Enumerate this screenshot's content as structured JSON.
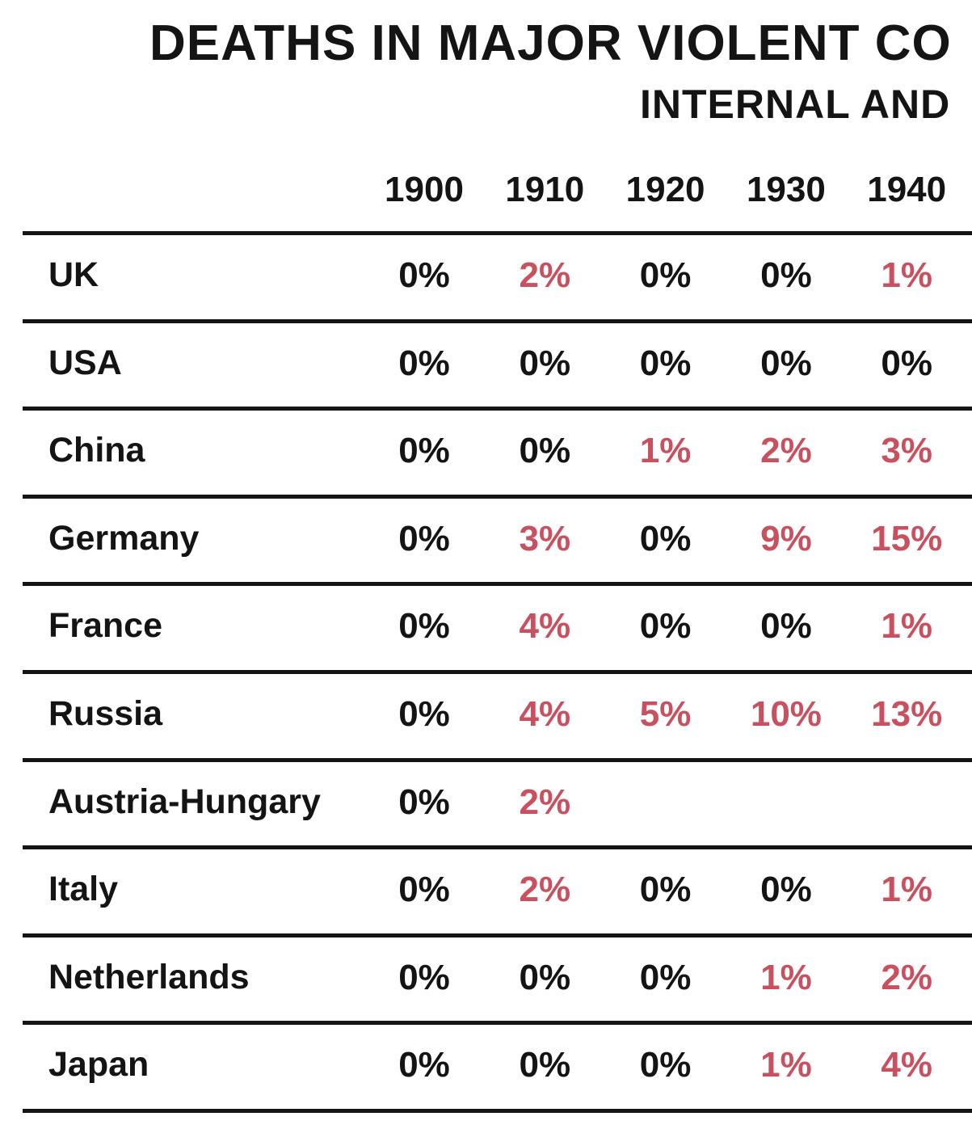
{
  "header": {
    "title": "DEATHS IN MAJOR VIOLENT CO",
    "subtitle": "INTERNAL AND"
  },
  "table": {
    "columns": [
      "1900",
      "1910",
      "1920",
      "1930",
      "1940"
    ],
    "highlight_color": "#c9505e",
    "rows": [
      {
        "label": "UK",
        "cells": [
          "0%",
          "2%",
          "0%",
          "0%",
          "1%"
        ]
      },
      {
        "label": "USA",
        "cells": [
          "0%",
          "0%",
          "0%",
          "0%",
          "0%"
        ]
      },
      {
        "label": "China",
        "cells": [
          "0%",
          "0%",
          "1%",
          "2%",
          "3%"
        ]
      },
      {
        "label": "Germany",
        "cells": [
          "0%",
          "3%",
          "0%",
          "9%",
          "15%"
        ]
      },
      {
        "label": "France",
        "cells": [
          "0%",
          "4%",
          "0%",
          "0%",
          "1%"
        ]
      },
      {
        "label": "Russia",
        "cells": [
          "0%",
          "4%",
          "5%",
          "10%",
          "13%"
        ]
      },
      {
        "label": "Austria-Hungary",
        "cells": [
          "0%",
          "2%"
        ]
      },
      {
        "label": "Italy",
        "cells": [
          "0%",
          "2%",
          "0%",
          "0%",
          "1%"
        ]
      },
      {
        "label": "Netherlands",
        "cells": [
          "0%",
          "0%",
          "0%",
          "1%",
          "2%"
        ]
      },
      {
        "label": "Japan",
        "cells": [
          "0%",
          "0%",
          "0%",
          "1%",
          "4%"
        ]
      }
    ]
  }
}
